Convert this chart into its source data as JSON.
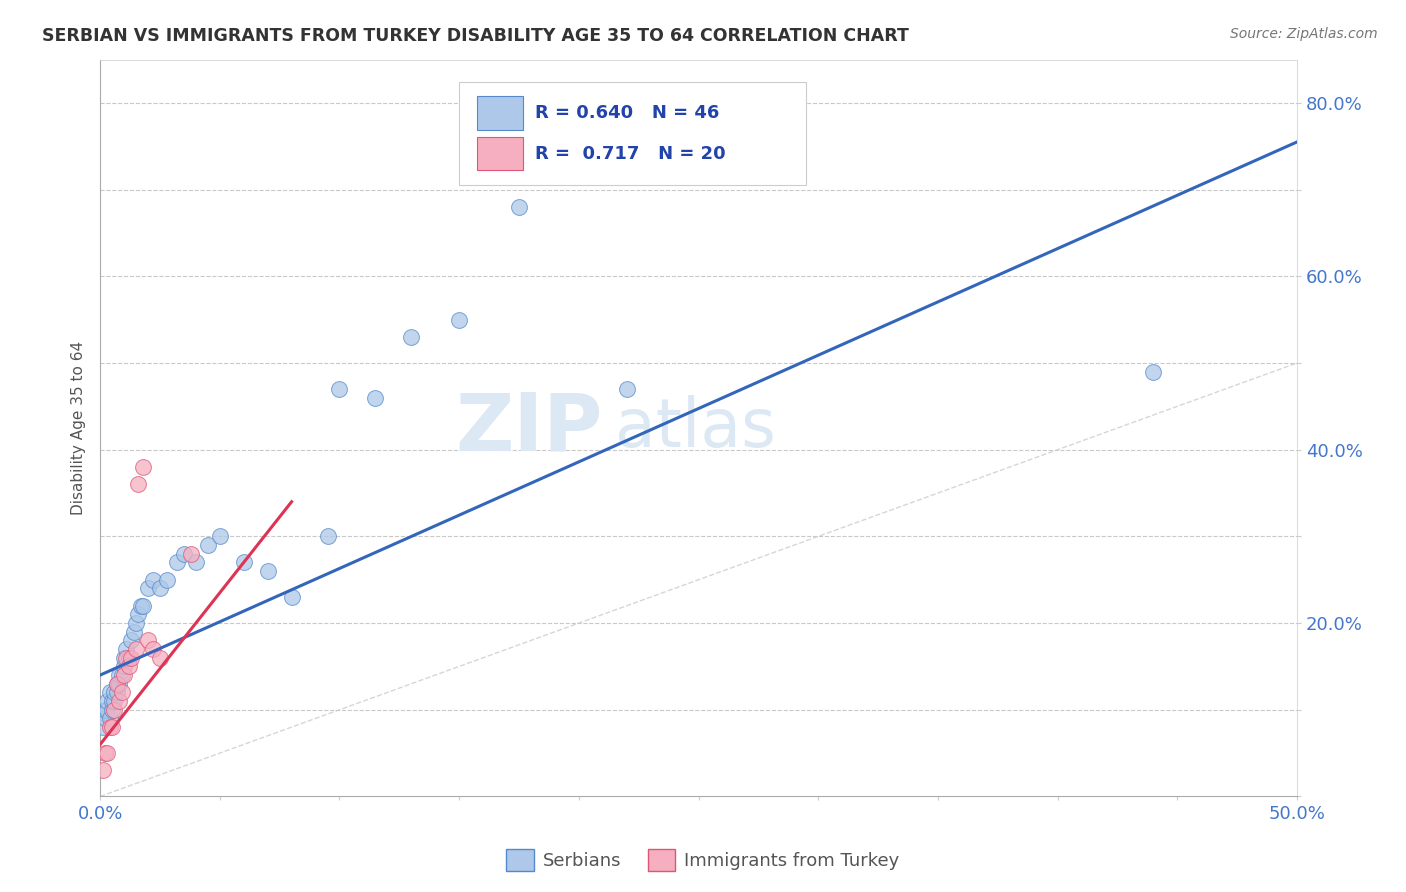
{
  "title": "SERBIAN VS IMMIGRANTS FROM TURKEY DISABILITY AGE 35 TO 64 CORRELATION CHART",
  "source": "Source: ZipAtlas.com",
  "ylabel": "Disability Age 35 to 64",
  "xlim": [
    0.0,
    0.5
  ],
  "ylim": [
    0.0,
    0.85
  ],
  "xticks": [
    0.0,
    0.05,
    0.1,
    0.15,
    0.2,
    0.25,
    0.3,
    0.35,
    0.4,
    0.45,
    0.5
  ],
  "xticklabels": [
    "0.0%",
    "",
    "",
    "",
    "",
    "",
    "",
    "",
    "",
    "",
    "50.0%"
  ],
  "yticks": [
    0.0,
    0.1,
    0.2,
    0.3,
    0.4,
    0.5,
    0.6,
    0.7,
    0.8
  ],
  "yticklabels": [
    "",
    "",
    "20.0%",
    "",
    "40.0%",
    "",
    "60.0%",
    "",
    "80.0%"
  ],
  "serbian_color": "#adc8e8",
  "turkey_color": "#f5afc0",
  "serbian_edge_color": "#5588cc",
  "turkey_edge_color": "#e05575",
  "trend_serbian_color": "#3366bb",
  "trend_turkey_color": "#dd3355",
  "r_serbian": 0.64,
  "n_serbian": 46,
  "r_turkey": 0.717,
  "n_turkey": 20,
  "legend_serbian": "Serbians",
  "legend_turkey": "Immigrants from Turkey",
  "watermark_zip": "ZIP",
  "watermark_atlas": "atlas",
  "background_color": "#ffffff",
  "grid_color": "#bbbbbb",
  "title_color": "#333333",
  "axis_label_color": "#4477cc",
  "serbian_x": [
    0.001,
    0.002,
    0.002,
    0.003,
    0.003,
    0.004,
    0.004,
    0.005,
    0.005,
    0.006,
    0.006,
    0.007,
    0.007,
    0.008,
    0.008,
    0.009,
    0.01,
    0.01,
    0.011,
    0.012,
    0.013,
    0.014,
    0.015,
    0.016,
    0.017,
    0.018,
    0.02,
    0.022,
    0.025,
    0.028,
    0.032,
    0.035,
    0.04,
    0.045,
    0.05,
    0.06,
    0.07,
    0.08,
    0.095,
    0.1,
    0.115,
    0.13,
    0.15,
    0.175,
    0.22,
    0.44
  ],
  "serbian_y": [
    0.08,
    0.09,
    0.1,
    0.1,
    0.11,
    0.09,
    0.12,
    0.1,
    0.11,
    0.11,
    0.12,
    0.13,
    0.12,
    0.13,
    0.14,
    0.14,
    0.15,
    0.16,
    0.17,
    0.16,
    0.18,
    0.19,
    0.2,
    0.21,
    0.22,
    0.22,
    0.24,
    0.25,
    0.24,
    0.25,
    0.27,
    0.28,
    0.27,
    0.29,
    0.3,
    0.27,
    0.26,
    0.23,
    0.3,
    0.47,
    0.46,
    0.53,
    0.55,
    0.68,
    0.47,
    0.49
  ],
  "turkey_x": [
    0.001,
    0.002,
    0.003,
    0.004,
    0.005,
    0.006,
    0.007,
    0.008,
    0.009,
    0.01,
    0.011,
    0.012,
    0.013,
    0.015,
    0.016,
    0.018,
    0.02,
    0.022,
    0.025,
    0.038
  ],
  "turkey_y": [
    0.03,
    0.05,
    0.05,
    0.08,
    0.08,
    0.1,
    0.13,
    0.11,
    0.12,
    0.14,
    0.16,
    0.15,
    0.16,
    0.17,
    0.36,
    0.38,
    0.18,
    0.17,
    0.16,
    0.28
  ],
  "trend_serbian_x0": 0.0,
  "trend_serbian_y0": 0.14,
  "trend_serbian_x1": 0.5,
  "trend_serbian_y1": 0.755,
  "trend_turkey_x0": 0.0,
  "trend_turkey_y0": 0.06,
  "trend_turkey_x1": 0.08,
  "trend_turkey_y1": 0.34
}
